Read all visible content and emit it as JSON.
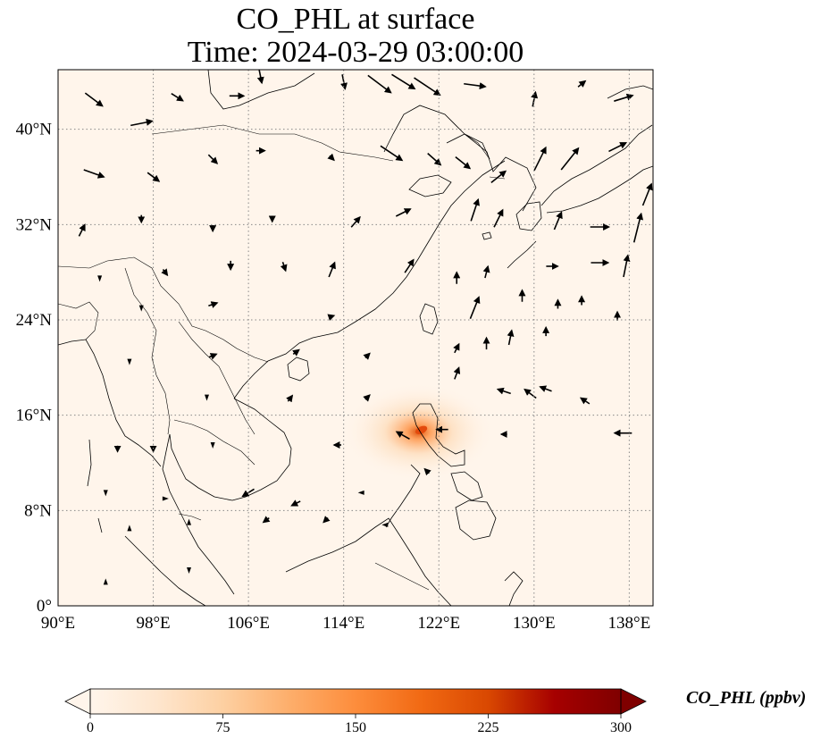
{
  "title": {
    "line1": "CO_PHL at surface",
    "line2": "Time: 2024-03-29 03:00:00"
  },
  "map": {
    "lon_range": [
      90,
      140
    ],
    "lat_range": [
      0,
      45
    ],
    "lon_ticks": [
      {
        "value": 90,
        "label": "90°E"
      },
      {
        "value": 98,
        "label": "98°E"
      },
      {
        "value": 106,
        "label": "106°E"
      },
      {
        "value": 114,
        "label": "114°E"
      },
      {
        "value": 122,
        "label": "122°E"
      },
      {
        "value": 130,
        "label": "130°E"
      },
      {
        "value": 138,
        "label": "138°E"
      }
    ],
    "lat_ticks": [
      {
        "value": 0,
        "label": "0°"
      },
      {
        "value": 8,
        "label": "8°N"
      },
      {
        "value": 16,
        "label": "16°N"
      },
      {
        "value": 24,
        "label": "24°N"
      },
      {
        "value": 32,
        "label": "32°N"
      },
      {
        "value": 40,
        "label": "40°N"
      }
    ],
    "background_color": "#fff5eb",
    "coast_color": "#000000",
    "grid_color": "#888888",
    "plume_center": {
      "lon": 120.3,
      "lat": 14.6
    },
    "winds": [
      {
        "lon": 93,
        "lat": 42.5,
        "u": 1.2,
        "v": -0.9
      },
      {
        "lon": 97,
        "lat": 40.5,
        "u": 1.5,
        "v": 0.3
      },
      {
        "lon": 100,
        "lat": 42.7,
        "u": 0.8,
        "v": -0.5
      },
      {
        "lon": 105,
        "lat": 42.8,
        "u": 1.0,
        "v": 0.0
      },
      {
        "lon": 107,
        "lat": 44.5,
        "u": 0.2,
        "v": -1.0
      },
      {
        "lon": 114,
        "lat": 44,
        "u": 0.2,
        "v": -1.0
      },
      {
        "lon": 117,
        "lat": 43.8,
        "u": 1.6,
        "v": -1.2
      },
      {
        "lon": 119,
        "lat": 44,
        "u": 1.6,
        "v": -1.0
      },
      {
        "lon": 121,
        "lat": 43.6,
        "u": 1.8,
        "v": -1.2
      },
      {
        "lon": 125,
        "lat": 43.7,
        "u": 1.5,
        "v": -0.2
      },
      {
        "lon": 130,
        "lat": 42.5,
        "u": 0.2,
        "v": 1.0
      },
      {
        "lon": 134,
        "lat": 43.8,
        "u": 0.5,
        "v": 0.4
      },
      {
        "lon": 137.5,
        "lat": 42.6,
        "u": 1.3,
        "v": 0.4
      },
      {
        "lon": 93,
        "lat": 36.3,
        "u": 1.4,
        "v": -0.5
      },
      {
        "lon": 98,
        "lat": 36,
        "u": 0.8,
        "v": -0.6
      },
      {
        "lon": 103,
        "lat": 37.5,
        "u": 0.6,
        "v": -0.6
      },
      {
        "lon": 107,
        "lat": 38.2,
        "u": 0.6,
        "v": 0.0
      },
      {
        "lon": 113,
        "lat": 37.6,
        "u": 0.3,
        "v": -0.3
      },
      {
        "lon": 118,
        "lat": 38,
        "u": 1.5,
        "v": -1.0
      },
      {
        "lon": 121.6,
        "lat": 37.5,
        "u": 0.9,
        "v": -0.8
      },
      {
        "lon": 124,
        "lat": 37.2,
        "u": 1.0,
        "v": -0.8
      },
      {
        "lon": 127,
        "lat": 36,
        "u": 1.0,
        "v": 0.8
      },
      {
        "lon": 130.5,
        "lat": 37.5,
        "u": 0.8,
        "v": 1.6
      },
      {
        "lon": 133,
        "lat": 37.5,
        "u": 1.2,
        "v": 1.5
      },
      {
        "lon": 137,
        "lat": 38.5,
        "u": 1.2,
        "v": 0.6
      },
      {
        "lon": 139.5,
        "lat": 34.5,
        "u": 0.6,
        "v": 1.5
      },
      {
        "lon": 92,
        "lat": 31.5,
        "u": 0.4,
        "v": 0.8
      },
      {
        "lon": 97,
        "lat": 32.5,
        "u": 0.0,
        "v": -0.5
      },
      {
        "lon": 103,
        "lat": 31.7,
        "u": 0.0,
        "v": -0.4
      },
      {
        "lon": 108,
        "lat": 32.5,
        "u": 0.0,
        "v": -0.4
      },
      {
        "lon": 115,
        "lat": 32.2,
        "u": 0.6,
        "v": 0.7
      },
      {
        "lon": 119,
        "lat": 33.0,
        "u": 1.0,
        "v": 0.5
      },
      {
        "lon": 125,
        "lat": 33.2,
        "u": 0.5,
        "v": 1.5
      },
      {
        "lon": 127,
        "lat": 32.5,
        "u": 0.6,
        "v": 1.2
      },
      {
        "lon": 132,
        "lat": 32.3,
        "u": 0.5,
        "v": 1.2
      },
      {
        "lon": 135.5,
        "lat": 31.8,
        "u": 1.3,
        "v": 0.0
      },
      {
        "lon": 138.7,
        "lat": 31.7,
        "u": 0.5,
        "v": 2.0
      },
      {
        "lon": 93.5,
        "lat": 27.5,
        "u": 0.0,
        "v": -0.3
      },
      {
        "lon": 99,
        "lat": 28,
        "u": 0.3,
        "v": -0.4
      },
      {
        "lon": 104.5,
        "lat": 28.6,
        "u": 0.0,
        "v": -0.6
      },
      {
        "lon": 109,
        "lat": 28.5,
        "u": 0.2,
        "v": -0.6
      },
      {
        "lon": 113,
        "lat": 28.2,
        "u": 0.4,
        "v": 1.0
      },
      {
        "lon": 119.5,
        "lat": 28.5,
        "u": 0.6,
        "v": 0.9
      },
      {
        "lon": 123.5,
        "lat": 27.5,
        "u": 0.0,
        "v": 0.8
      },
      {
        "lon": 126,
        "lat": 28.0,
        "u": 0.2,
        "v": 0.8
      },
      {
        "lon": 131.5,
        "lat": 28.5,
        "u": 0.8,
        "v": 0.0
      },
      {
        "lon": 135.5,
        "lat": 28.8,
        "u": 1.2,
        "v": 0.0
      },
      {
        "lon": 137.7,
        "lat": 28.5,
        "u": 0.3,
        "v": 1.5
      },
      {
        "lon": 97,
        "lat": 25,
        "u": 0.0,
        "v": -0.2
      },
      {
        "lon": 103,
        "lat": 25.3,
        "u": 0.6,
        "v": 0.2
      },
      {
        "lon": 113,
        "lat": 24.3,
        "u": 0.3,
        "v": 0.1
      },
      {
        "lon": 125,
        "lat": 25,
        "u": 0.6,
        "v": 1.5
      },
      {
        "lon": 129,
        "lat": 26,
        "u": 0.0,
        "v": 0.8
      },
      {
        "lon": 132,
        "lat": 25.3,
        "u": 0.0,
        "v": 0.6
      },
      {
        "lon": 134,
        "lat": 25.6,
        "u": 0.0,
        "v": 0.6
      },
      {
        "lon": 137,
        "lat": 24.3,
        "u": 0.0,
        "v": 0.6
      },
      {
        "lon": 96,
        "lat": 20.5,
        "u": 0.0,
        "v": -0.3
      },
      {
        "lon": 103,
        "lat": 21,
        "u": 0.5,
        "v": 0.2
      },
      {
        "lon": 110,
        "lat": 21.3,
        "u": 0.4,
        "v": 0.3
      },
      {
        "lon": 116,
        "lat": 21,
        "u": 0.3,
        "v": 0.3
      },
      {
        "lon": 123.5,
        "lat": 21.6,
        "u": 0.3,
        "v": 0.6
      },
      {
        "lon": 126,
        "lat": 22,
        "u": 0.0,
        "v": 0.8
      },
      {
        "lon": 128,
        "lat": 22.5,
        "u": 0.2,
        "v": 1.0
      },
      {
        "lon": 131,
        "lat": 23,
        "u": 0.0,
        "v": 0.6
      },
      {
        "lon": 102.5,
        "lat": 17.5,
        "u": 0.0,
        "v": -0.3
      },
      {
        "lon": 109.5,
        "lat": 17.4,
        "u": 0.3,
        "v": 0.4
      },
      {
        "lon": 116,
        "lat": 17.5,
        "u": 0.3,
        "v": 0.3
      },
      {
        "lon": 123.5,
        "lat": 19.5,
        "u": 0.3,
        "v": 0.8
      },
      {
        "lon": 127.5,
        "lat": 18.0,
        "u": -0.9,
        "v": 0.3
      },
      {
        "lon": 129.7,
        "lat": 17.8,
        "u": -0.8,
        "v": 0.6
      },
      {
        "lon": 131,
        "lat": 18.2,
        "u": -0.8,
        "v": 0.3
      },
      {
        "lon": 134.3,
        "lat": 17.2,
        "u": -0.6,
        "v": 0.4
      },
      {
        "lon": 95,
        "lat": 13.2,
        "u": 0.0,
        "v": -0.4
      },
      {
        "lon": 98,
        "lat": 13.2,
        "u": 0.0,
        "v": -0.4
      },
      {
        "lon": 103,
        "lat": 13.5,
        "u": 0.0,
        "v": -0.3
      },
      {
        "lon": 113.5,
        "lat": 13.5,
        "u": -0.5,
        "v": 0.0
      },
      {
        "lon": 119,
        "lat": 14.3,
        "u": -0.9,
        "v": 0.5
      },
      {
        "lon": 122.3,
        "lat": 14.8,
        "u": -0.8,
        "v": 0.0
      },
      {
        "lon": 127.5,
        "lat": 14.4,
        "u": -0.4,
        "v": 0.0
      },
      {
        "lon": 137.5,
        "lat": 14.5,
        "u": -1.2,
        "v": 0.0
      },
      {
        "lon": 94,
        "lat": 9.5,
        "u": 0.0,
        "v": -0.3
      },
      {
        "lon": 99,
        "lat": 9,
        "u": 0.3,
        "v": 0.0
      },
      {
        "lon": 106,
        "lat": 9.5,
        "u": -0.8,
        "v": -0.5
      },
      {
        "lon": 110,
        "lat": 8.6,
        "u": -0.6,
        "v": -0.3
      },
      {
        "lon": 115.5,
        "lat": 9.5,
        "u": -0.3,
        "v": 0.0
      },
      {
        "lon": 121,
        "lat": 11.3,
        "u": -0.3,
        "v": 0.3
      },
      {
        "lon": 96,
        "lat": 6.5,
        "u": 0.0,
        "v": 0.3
      },
      {
        "lon": 101,
        "lat": 7,
        "u": 0.0,
        "v": 0.3
      },
      {
        "lon": 107.5,
        "lat": 7.2,
        "u": -0.4,
        "v": -0.3
      },
      {
        "lon": 112.5,
        "lat": 7.2,
        "u": -0.3,
        "v": -0.3
      },
      {
        "lon": 117.5,
        "lat": 6.8,
        "u": -0.2,
        "v": 0.0
      },
      {
        "lon": 94,
        "lat": 2,
        "u": 0.0,
        "v": 0.3
      },
      {
        "lon": 101,
        "lat": 3,
        "u": 0.0,
        "v": -0.3
      }
    ]
  },
  "colorbar": {
    "label": "CO_PHL (ppbv)",
    "min": 0,
    "max": 300,
    "ticks": [
      {
        "value": 0,
        "label": "0"
      },
      {
        "value": 75,
        "label": "75"
      },
      {
        "value": 150,
        "label": "150"
      },
      {
        "value": 225,
        "label": "225"
      },
      {
        "value": 300,
        "label": "300"
      }
    ],
    "colors": [
      "#fff5eb",
      "#fee6ce",
      "#fdd0a2",
      "#fdae6b",
      "#fd8d3c",
      "#f16913",
      "#d94801",
      "#a60000",
      "#7f0000"
    ],
    "extend": "both"
  }
}
